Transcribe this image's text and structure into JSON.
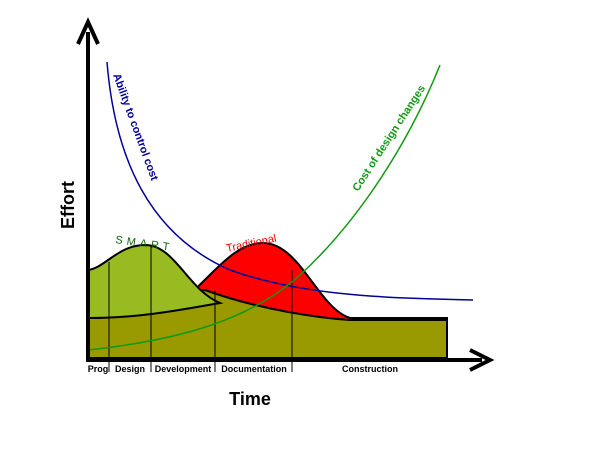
{
  "axes": {
    "y_label": "Effort",
    "x_label": "Time"
  },
  "curves": {
    "ability": "Ability to control cost",
    "cost": "Cost of design changes",
    "smart": "SMART",
    "traditional": "Traditional"
  },
  "phases": [
    "Prog",
    "Design",
    "Development",
    "Documentation",
    "Construction"
  ]
}
